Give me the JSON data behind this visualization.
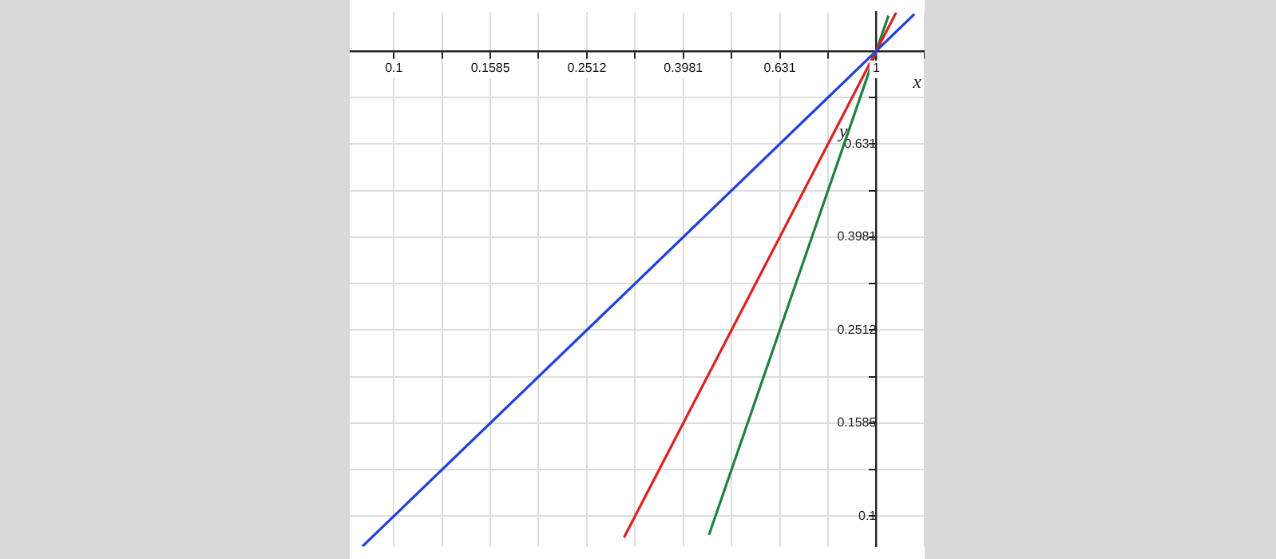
{
  "chart_data": {
    "type": "line",
    "xlabel": "x",
    "ylabel": "y",
    "log": "xy",
    "grid": true,
    "legend": false,
    "marker": "none",
    "line_style": "solid",
    "xlim": [
      0.081,
      1.26
    ],
    "ylim": [
      0.086,
      1.21
    ],
    "xticks": [
      0.1,
      {
        "value": 0.1259,
        "label": null
      },
      0.1585,
      {
        "value": 0.1995,
        "label": null
      },
      0.2512,
      {
        "value": 0.3162,
        "label": null
      },
      0.3981,
      {
        "value": 0.5012,
        "label": null
      },
      0.631,
      {
        "value": 0.7943,
        "label": null
      },
      1,
      {
        "value": 1.2589,
        "label": null
      }
    ],
    "yticks": [
      0.1,
      {
        "value": 0.1259,
        "label": null
      },
      0.1585,
      {
        "value": 0.1995,
        "label": null
      },
      0.2512,
      {
        "value": 0.3162,
        "label": null
      },
      0.3981,
      {
        "value": 0.5012,
        "label": null
      },
      0.631,
      {
        "value": 0.7943,
        "label": null
      },
      {
        "value": 1,
        "label": null
      }
    ],
    "series": [
      {
        "color": "#1f3fe0",
        "x": [
          0.086,
          1.2
        ],
        "values": [
          0.086,
          1.2
        ]
      },
      {
        "color": "#e02020",
        "x": [
          0.3,
          1.1
        ],
        "values": [
          0.09,
          1.21
        ]
      },
      {
        "color": "#208040",
        "x": [
          0.45,
          1.06
        ],
        "values": [
          0.0911,
          1.191
        ]
      }
    ]
  }
}
